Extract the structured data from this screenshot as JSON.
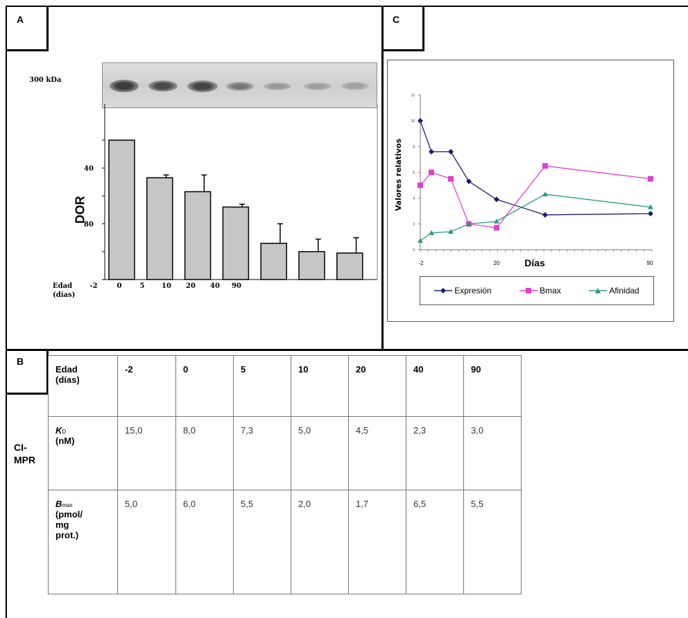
{
  "panels": {
    "a_label": "A",
    "b_label": "B",
    "c_label": "C"
  },
  "panel_a": {
    "blot_label": "300 kDa",
    "y_axis_title": "DOR",
    "y_tick_labels": [
      "80",
      "40"
    ],
    "x_row_label_line1": "Edad",
    "x_row_label_line2": "(días)",
    "x_labels": [
      "-2",
      "0",
      "5",
      "10",
      "20",
      "40",
      "90"
    ]
  },
  "panel_c": {
    "legend": [
      "Expresión",
      "Bmax",
      "Afinidad"
    ],
    "colors": {
      "expresion": "#1c1c6e",
      "bmax": "#e040d0",
      "afinidad": "#2e9a80"
    }
  },
  "table": {
    "side_label_1": "CI-",
    "side_label_2": "MPR",
    "header_label_1": "Edad",
    "header_label_2": "(días)",
    "ages": [
      "-2",
      "0",
      "5",
      "10",
      "20",
      "40",
      "90"
    ],
    "kd_symbol": "K",
    "kd_sub": "D",
    "kd_unit": "(nM)",
    "kd_values": [
      "15,0",
      "8,0",
      "7,3",
      "5,0",
      "4,5",
      "2,3",
      "3,0"
    ],
    "bmax_symbol": "B",
    "bmax_sub": "max",
    "bmax_unit_1": "(pmol/",
    "bmax_unit_2": "mg",
    "bmax_unit_3": "prot.)",
    "bmax_values": [
      "5,0",
      "6,0",
      "5,5",
      "2,0",
      "1,7",
      "6,5",
      "5,5"
    ]
  },
  "chart_data": [
    {
      "type": "bar",
      "categories": [
        "-2",
        "0",
        "5",
        "10",
        "20",
        "40",
        "90"
      ],
      "values": [
        100,
        73,
        63,
        52,
        26,
        20,
        19
      ],
      "errors": [
        0,
        2,
        12,
        2,
        14,
        9,
        11
      ],
      "xlabel": "Edad (días)",
      "ylabel": "DOR",
      "ylim": [
        0,
        105
      ],
      "y_ticks": [
        40,
        80
      ]
    },
    {
      "type": "line",
      "xlabel": "Días",
      "ylabel": "Valores relativos",
      "x_ticks": [
        "-2",
        "20",
        "90"
      ],
      "xlim": [
        -2,
        90
      ],
      "ylim": [
        0,
        12
      ],
      "y_ticks": [
        "0",
        "2",
        "4",
        "6",
        "8",
        "10",
        "12"
      ],
      "series": [
        {
          "name": "Expresión",
          "x": [
            -2,
            0,
            5,
            10,
            20,
            40,
            90
          ],
          "y": [
            10,
            7.6,
            7.6,
            5.3,
            3.9,
            2.7,
            2.8
          ]
        },
        {
          "name": "Bmax",
          "x": [
            -2,
            0,
            5,
            10,
            20,
            40,
            90
          ],
          "y": [
            5.0,
            6.0,
            5.5,
            2.0,
            1.7,
            6.5,
            5.5
          ]
        },
        {
          "name": "Afinidad",
          "x": [
            -2,
            0,
            5,
            10,
            20,
            40,
            90
          ],
          "y": [
            0.7,
            1.3,
            1.4,
            2.0,
            2.2,
            4.3,
            3.3
          ]
        }
      ]
    }
  ]
}
